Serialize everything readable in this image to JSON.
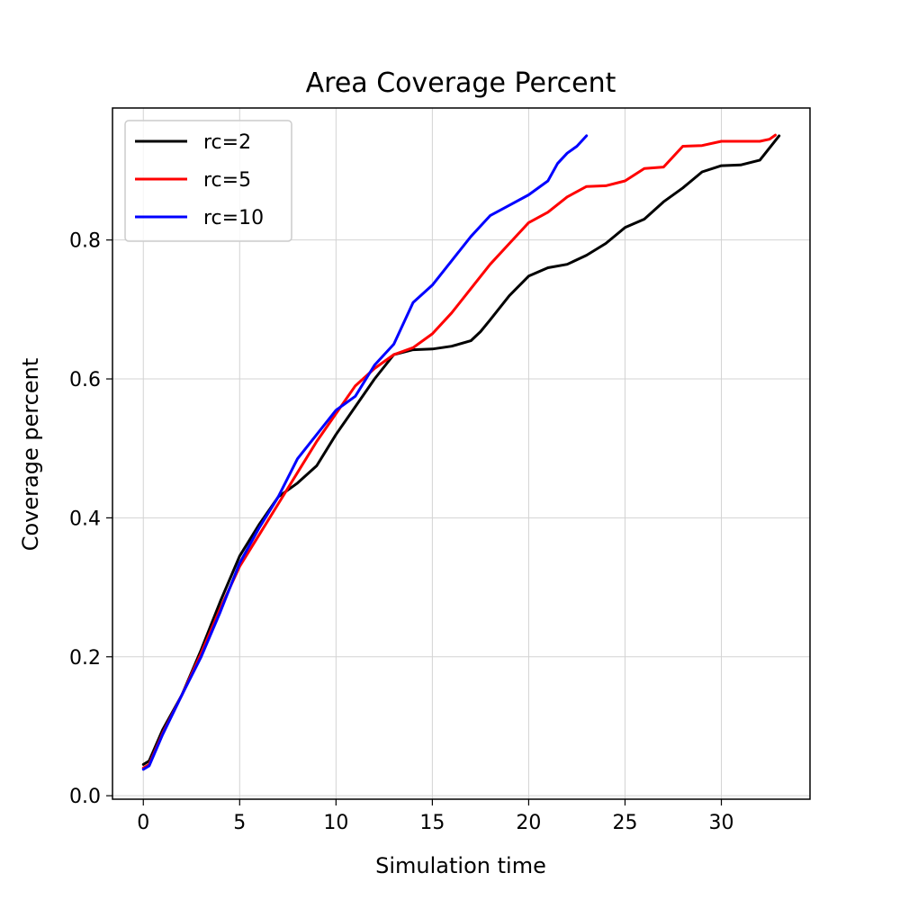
{
  "chart_data": {
    "type": "line",
    "title": "Area Coverage Percent",
    "xlabel": "Simulation time",
    "ylabel": "Coverage percent",
    "xlim": [
      -1.6,
      34.6
    ],
    "ylim": [
      -0.005,
      0.99
    ],
    "xticks": [
      0,
      5,
      10,
      15,
      20,
      25,
      30
    ],
    "yticks": [
      0.0,
      0.2,
      0.4,
      0.6,
      0.8
    ],
    "xtick_labels": [
      "0",
      "5",
      "10",
      "15",
      "20",
      "25",
      "30"
    ],
    "ytick_labels": [
      "0.0",
      "0.2",
      "0.4",
      "0.6",
      "0.8"
    ],
    "grid": true,
    "legend": "top-left",
    "series": [
      {
        "name": "rc=2",
        "color": "#000000",
        "x": [
          0,
          0.3,
          1,
          2,
          3,
          4,
          5,
          6,
          7,
          8,
          9,
          10,
          11,
          12,
          13,
          14,
          15,
          16,
          17,
          17.5,
          18,
          19,
          20,
          21,
          22,
          23,
          24,
          25,
          26,
          27,
          28,
          29,
          30,
          31,
          32,
          33
        ],
        "y": [
          0.045,
          0.05,
          0.095,
          0.145,
          0.21,
          0.28,
          0.345,
          0.39,
          0.43,
          0.45,
          0.475,
          0.52,
          0.56,
          0.6,
          0.635,
          0.642,
          0.643,
          0.647,
          0.655,
          0.668,
          0.685,
          0.72,
          0.748,
          0.76,
          0.765,
          0.778,
          0.795,
          0.818,
          0.83,
          0.855,
          0.875,
          0.898,
          0.907,
          0.908,
          0.915,
          0.95
        ]
      },
      {
        "name": "rc=5",
        "color": "#ff0000",
        "x": [
          0,
          0.3,
          1,
          2,
          3,
          4,
          5,
          6,
          7,
          8,
          9,
          10,
          11,
          12,
          13,
          14,
          15,
          16,
          17,
          18,
          19,
          20,
          21,
          22,
          23,
          24,
          25,
          26,
          27,
          28,
          29,
          30,
          31,
          32,
          32.5,
          32.8
        ],
        "y": [
          0.04,
          0.045,
          0.09,
          0.145,
          0.205,
          0.27,
          0.33,
          0.375,
          0.42,
          0.465,
          0.51,
          0.55,
          0.59,
          0.615,
          0.635,
          0.645,
          0.665,
          0.695,
          0.73,
          0.765,
          0.795,
          0.825,
          0.84,
          0.862,
          0.877,
          0.878,
          0.885,
          0.903,
          0.905,
          0.935,
          0.936,
          0.942,
          0.942,
          0.942,
          0.945,
          0.951
        ]
      },
      {
        "name": "rc=10",
        "color": "#0000ff",
        "x": [
          0,
          0.3,
          1,
          2,
          3,
          4,
          5,
          6,
          7,
          8,
          9,
          10,
          11,
          12,
          13,
          14,
          15,
          16,
          17,
          18,
          19,
          20,
          21,
          21.5,
          22,
          22.5,
          23
        ],
        "y": [
          0.038,
          0.043,
          0.088,
          0.145,
          0.2,
          0.265,
          0.335,
          0.385,
          0.43,
          0.485,
          0.52,
          0.555,
          0.575,
          0.62,
          0.65,
          0.71,
          0.735,
          0.77,
          0.805,
          0.835,
          0.85,
          0.865,
          0.885,
          0.91,
          0.925,
          0.935,
          0.95
        ]
      }
    ]
  }
}
